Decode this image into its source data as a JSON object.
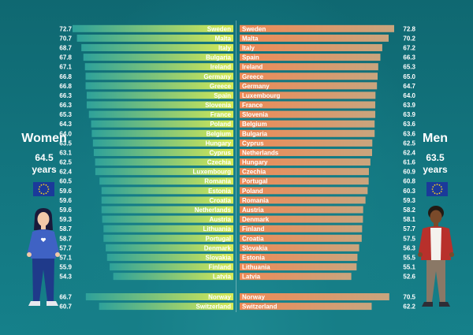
{
  "women": {
    "title": "Women",
    "value": "64.5",
    "unit": "years"
  },
  "men": {
    "title": "Men",
    "value": "63.5",
    "unit": "years"
  },
  "colors": {
    "women_bar_start": "#2ea19a",
    "women_bar_end": "#d7ea55",
    "men_bar_start": "#ee8a56",
    "men_bar_end": "#c9a57e",
    "label_text": "#ffffff",
    "flag_blue": "#1b3a9a",
    "flag_star": "#f7d21e"
  },
  "icons": [
    "eu-flag-icon",
    "woman-figure-icon",
    "man-figure-icon"
  ],
  "chart_data": [
    {
      "type": "bar",
      "orientation": "horizontal",
      "direction": "right-to-left",
      "categories": [
        "Sweden",
        "Malta",
        "Italy",
        "Bulgaria",
        "Ireland",
        "Germany",
        "Greece",
        "Spain",
        "Slovenia",
        "France",
        "Poland",
        "Belgium",
        "Hungary",
        "Cyprus",
        "Czechia",
        "Luxembourg",
        "Romania",
        "Estonia",
        "Croatia",
        "Netherlands",
        "Austria",
        "Lithuania",
        "Portugal",
        "Denmark",
        "Slovakia",
        "Finland",
        "Latvia",
        "Norway",
        "Switzerland"
      ],
      "values": [
        72.7,
        70.7,
        68.7,
        67.8,
        67.1,
        66.8,
        66.8,
        66.3,
        66.3,
        65.3,
        64.3,
        64.0,
        63.5,
        63.1,
        62.5,
        62.4,
        60.5,
        59.6,
        59.6,
        59.6,
        59.3,
        58.7,
        58.7,
        57.7,
        57.1,
        55.9,
        54.3,
        66.7,
        60.7
      ],
      "value_labels": [
        "72.7",
        "70.7",
        "68.7",
        "67.8",
        "67.1",
        "66.8",
        "66.8",
        "66.3",
        "66.3",
        "65.3",
        "64.3",
        "64.0",
        "63.5",
        "63.1",
        "62.5",
        "62.4",
        "60.5",
        "59.6",
        "59.6",
        "59.6",
        "59.3",
        "58.7",
        "58.7",
        "57.7",
        "57.1",
        "55.9",
        "54.3",
        "66.7",
        "60.7"
      ],
      "xlim": [
        0,
        72.7
      ]
    },
    {
      "type": "bar",
      "orientation": "horizontal",
      "direction": "left-to-right",
      "categories": [
        "Sweden",
        "Malta",
        "Italy",
        "Spain",
        "Ireland",
        "Greece",
        "Germany",
        "Luxembourg",
        "France",
        "Slovenia",
        "Belgium",
        "Bulgaria",
        "Cyprus",
        "Netherlands",
        "Hungary",
        "Czechia",
        "Portugal",
        "Poland",
        "Romania",
        "Austria",
        "Denmark",
        "Finland",
        "Croatia",
        "Slovakia",
        "Estonia",
        "Lithuania",
        "Latvia",
        "Norway",
        "Switzerland"
      ],
      "values": [
        72.8,
        70.2,
        67.2,
        66.3,
        65.3,
        65.0,
        64.7,
        64.0,
        63.9,
        63.9,
        63.6,
        63.6,
        62.5,
        62.4,
        61.6,
        60.9,
        60.8,
        60.3,
        59.3,
        58.2,
        58.1,
        57.7,
        57.5,
        56.3,
        55.5,
        55.1,
        52.6,
        70.5,
        62.2
      ],
      "value_labels": [
        "72.8",
        "70.2",
        "67.2",
        "66.3",
        "65.3",
        "65.0",
        "64.7",
        "64.0",
        "63.9",
        "63.9",
        "63.6",
        "63.6",
        "62.5",
        "62.4",
        "61.6",
        "60.9",
        "60.8",
        "60.3",
        "59.3",
        "58.2",
        "58.1",
        "57.7",
        "57.5",
        "56.3",
        "55.5",
        "55.1",
        "52.6",
        "70.5",
        "62.2"
      ],
      "xlim": [
        0,
        72.8
      ]
    }
  ]
}
